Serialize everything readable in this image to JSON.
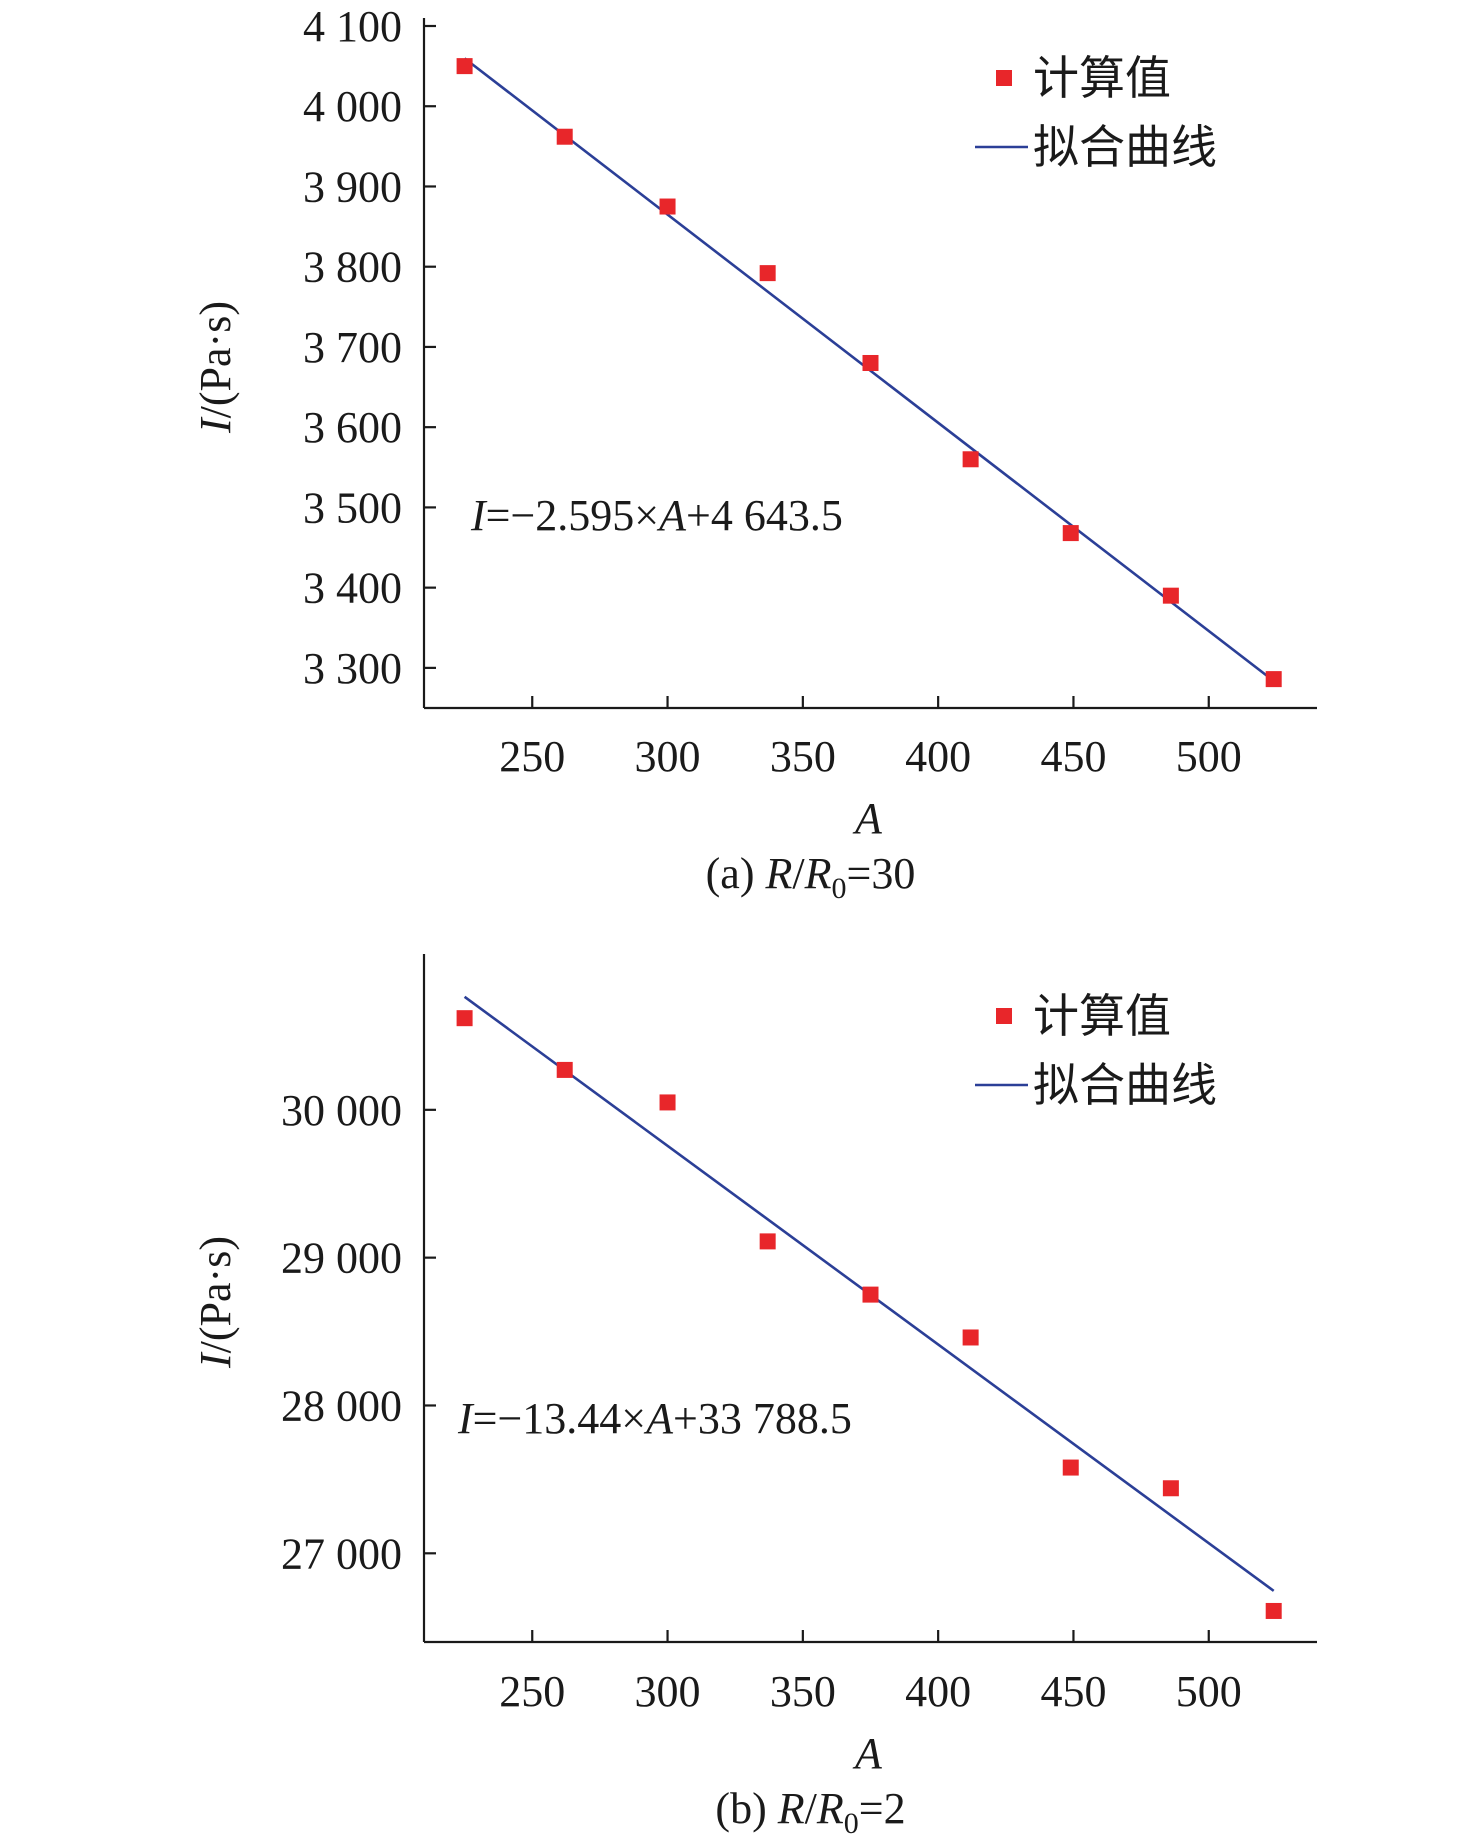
{
  "colors": {
    "marker": "#e8262a",
    "fit_line": "#2b3f97",
    "axis": "#1a1a1a"
  },
  "chart_data": [
    {
      "type": "scatter",
      "panel": "a",
      "caption": {
        "prefix": "(a) ",
        "var1": "R",
        "slash": "/",
        "var2": "R",
        "sub": "0",
        "suffix": "=30"
      },
      "xlabel": "A",
      "ylabel": {
        "var": "I",
        "unit": "/(Pa·s)"
      },
      "xlim": [
        210,
        540
      ],
      "ylim": [
        3250,
        4100
      ],
      "xticks": [
        250,
        300,
        350,
        400,
        450,
        500
      ],
      "xtick_labels": [
        "250",
        "300",
        "350",
        "400",
        "450",
        "500"
      ],
      "yticks": [
        3300,
        3400,
        3500,
        3600,
        3700,
        3800,
        3900,
        4000,
        4100
      ],
      "ytick_labels": [
        "3 300",
        "3 400",
        "3 500",
        "3 600",
        "3 700",
        "3 800",
        "3 900",
        "4 000",
        "4 100"
      ],
      "series": [
        {
          "name": "计算值",
          "type": "scatter",
          "x": [
            225,
            262,
            300,
            337,
            375,
            412,
            449,
            486,
            524
          ],
          "y": [
            4050,
            3962,
            3875,
            3792,
            3680,
            3560,
            3468,
            3390,
            3286
          ]
        },
        {
          "name": "拟合曲线",
          "type": "line",
          "slope": -2.595,
          "intercept": 4643.5,
          "x_range": [
            225,
            524
          ]
        }
      ],
      "equation": {
        "var": "I",
        "mid": "=−2.595×",
        "var2": "A",
        "rest": "+4 643.5"
      },
      "legend": {
        "position": "top-right",
        "labels": [
          "计算值",
          "拟合曲线"
        ]
      }
    },
    {
      "type": "scatter",
      "panel": "b",
      "caption": {
        "prefix": "(b) ",
        "var1": "R",
        "slash": "/",
        "var2": "R",
        "sub": "0",
        "suffix": "=2"
      },
      "xlabel": "A",
      "ylabel": {
        "var": "I",
        "unit": "/(Pa·s)"
      },
      "xlim": [
        210,
        540
      ],
      "ylim": [
        26400,
        31000
      ],
      "xticks": [
        250,
        300,
        350,
        400,
        450,
        500
      ],
      "xtick_labels": [
        "250",
        "300",
        "350",
        "400",
        "450",
        "500"
      ],
      "yticks": [
        27000,
        28000,
        29000,
        30000
      ],
      "ytick_labels": [
        "27 000",
        "28 000",
        "29 000",
        "30 000"
      ],
      "series": [
        {
          "name": "计算值",
          "type": "scatter",
          "x": [
            225,
            262,
            300,
            337,
            375,
            412,
            449,
            486,
            524
          ],
          "y": [
            30620,
            30270,
            30050,
            29110,
            28750,
            28460,
            27580,
            27440,
            26610
          ]
        },
        {
          "name": "拟合曲线",
          "type": "line",
          "slope": -13.44,
          "intercept": 33788.5,
          "x_range": [
            225,
            524
          ]
        }
      ],
      "equation": {
        "var": "I",
        "mid": "=−13.44×",
        "var2": "A",
        "rest": "+33 788.5"
      },
      "legend": {
        "position": "top-right",
        "labels": [
          "计算值",
          "拟合曲线"
        ]
      }
    }
  ]
}
